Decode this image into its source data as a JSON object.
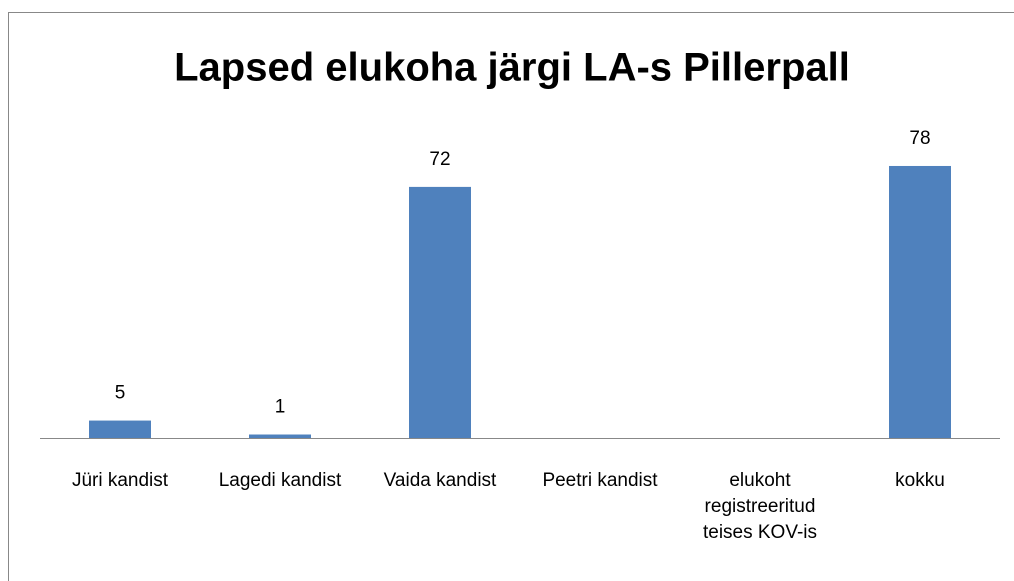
{
  "chart_data": {
    "type": "bar",
    "title": "Lapsed elukoha järgi LA-s Pillerpall",
    "categories": [
      "Jüri kandist",
      "Lagedi kandist",
      "Vaida kandist",
      "Peetri kandist",
      "elukoht registreeritud teises KOV-is",
      "kokku"
    ],
    "values": [
      5,
      1,
      72,
      null,
      null,
      78
    ],
    "color": "#4f81bd",
    "ylim": [
      0,
      80
    ],
    "grid": false
  }
}
